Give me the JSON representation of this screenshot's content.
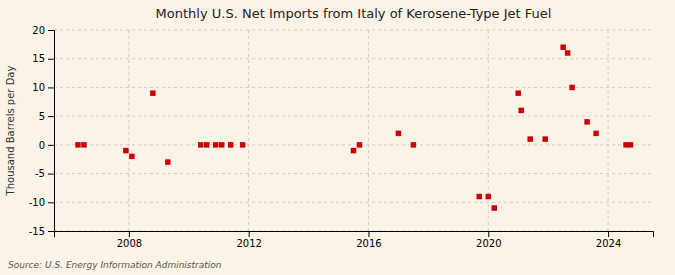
{
  "chart_data": {
    "type": "scatter",
    "title": "Monthly U.S. Net Imports from Italy of Kerosene-Type Jet Fuel",
    "ylabel": "Thousand Barrels per Day",
    "annotations": [
      "Source: U.S. Energy Information Administration"
    ],
    "color": "#cc0000",
    "marker": "square",
    "grid": true,
    "xlim": [
      2005.5,
      2025.5
    ],
    "xticks": [
      2008,
      2012,
      2016,
      2020,
      2024
    ],
    "ylim": [
      -15,
      20
    ],
    "yticks": [
      -15,
      -10,
      -5,
      0,
      5,
      10,
      15,
      20
    ],
    "x": [
      2006.3,
      2006.5,
      2007.9,
      2008.1,
      2008.8,
      2009.3,
      2010.4,
      2010.6,
      2010.9,
      2011.1,
      2011.4,
      2011.8,
      2015.5,
      2015.7,
      2017.0,
      2017.5,
      2019.7,
      2020.0,
      2020.2,
      2021.0,
      2021.1,
      2021.4,
      2021.9,
      2022.5,
      2022.65,
      2022.8,
      2023.3,
      2023.6,
      2024.6,
      2024.75
    ],
    "values": [
      0,
      0,
      -1,
      -2,
      9,
      -3,
      0,
      0,
      0,
      0,
      0,
      0,
      -1,
      0,
      2,
      0,
      -9,
      -9,
      -11,
      9,
      6,
      1,
      1,
      17,
      16,
      10,
      4,
      2,
      0,
      0
    ]
  }
}
